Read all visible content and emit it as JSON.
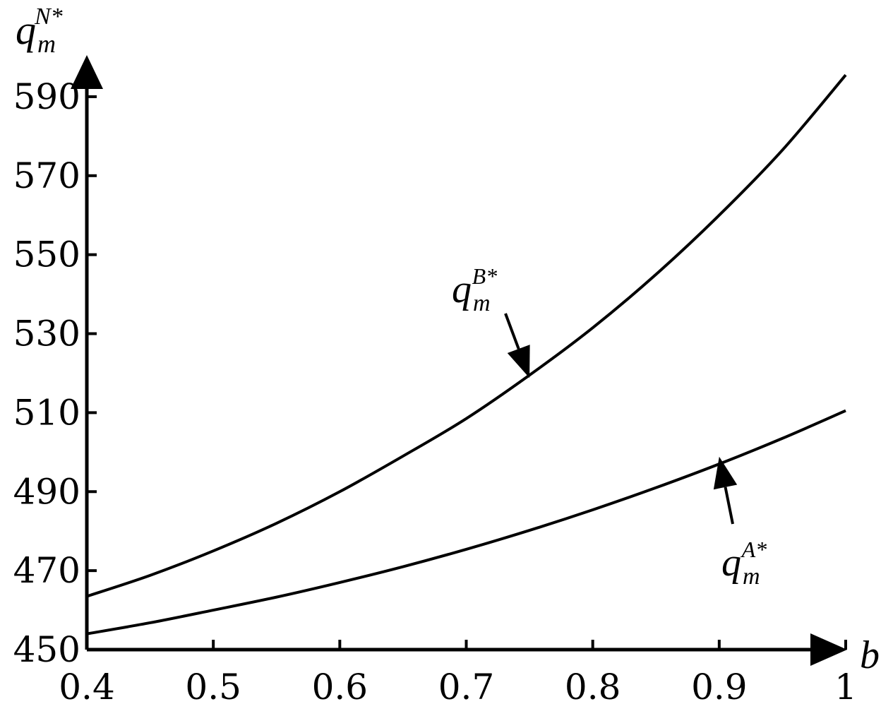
{
  "chart_data": {
    "type": "line",
    "title": "",
    "xlabel": "b",
    "ylabel": {
      "base": "q",
      "sub": "m",
      "sup": "N*"
    },
    "xlim": [
      0.4,
      1.0
    ],
    "ylim": [
      450,
      600
    ],
    "x_ticks": [
      0.4,
      0.5,
      0.6,
      0.7,
      0.8,
      0.9,
      1.0
    ],
    "x_tick_labels": [
      "0.4",
      "0.5",
      "0.6",
      "0.7",
      "0.8",
      "0.9",
      "1"
    ],
    "y_ticks": [
      450,
      470,
      490,
      510,
      530,
      550,
      570,
      590
    ],
    "y_tick_labels": [
      "450",
      "470",
      "490",
      "510",
      "530",
      "550",
      "570",
      "590"
    ],
    "grid": false,
    "series": [
      {
        "label": {
          "base": "q",
          "sub": "m",
          "sup": "B*"
        },
        "x": [
          0.4,
          0.45,
          0.5,
          0.55,
          0.6,
          0.65,
          0.7,
          0.75,
          0.8,
          0.85,
          0.9,
          0.95,
          1.0
        ],
        "y": [
          463.5,
          468.8,
          475.0,
          482.0,
          490.0,
          499.0,
          508.5,
          519.5,
          531.5,
          545.0,
          560.0,
          576.5,
          595.5
        ]
      },
      {
        "label": {
          "base": "q",
          "sub": "m",
          "sup": "A*"
        },
        "x": [
          0.4,
          0.45,
          0.5,
          0.55,
          0.6,
          0.65,
          0.7,
          0.75,
          0.8,
          0.85,
          0.9,
          0.95,
          1.0
        ],
        "y": [
          454.0,
          456.8,
          460.0,
          463.3,
          467.0,
          471.0,
          475.4,
          480.2,
          485.4,
          491.0,
          497.0,
          503.5,
          510.5
        ]
      }
    ],
    "annotations": [
      {
        "series": 0,
        "arrow_to": [
          0.75,
          519.5
        ]
      },
      {
        "series": 1,
        "arrow_to": [
          0.9,
          498.5
        ]
      }
    ]
  }
}
